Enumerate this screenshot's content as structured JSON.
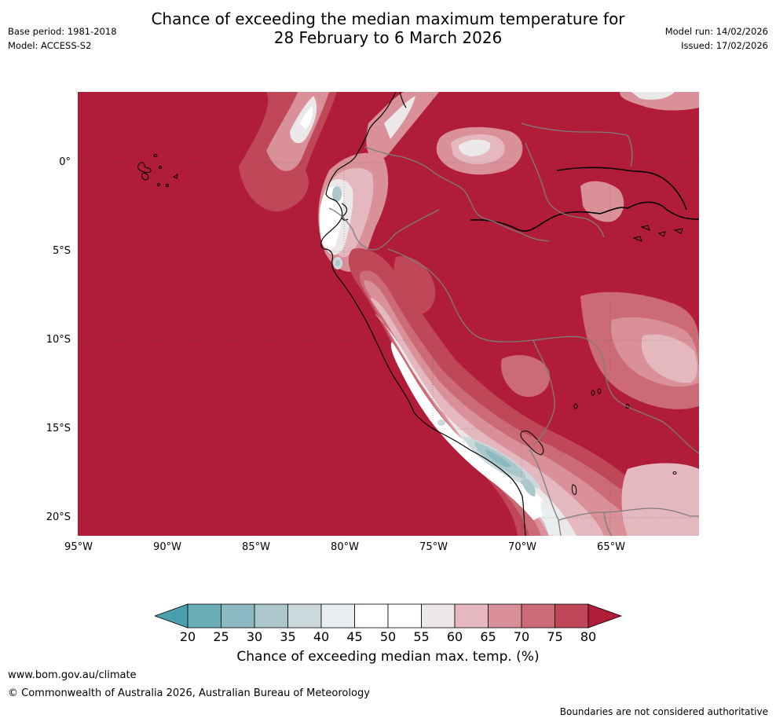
{
  "header": {
    "title_line1": "Chance of exceeding the median maximum temperature for",
    "title_line2": "28 February to 6 March 2026",
    "base_period": "Base period: 1981-2018",
    "model": "Model: ACCESS-S2",
    "model_run": "Model run: 14/02/2026",
    "issued": "Issued: 17/02/2026"
  },
  "map": {
    "lat_labels": [
      "0°",
      "5°S",
      "10°S",
      "15°S",
      "20°S"
    ],
    "lon_labels": [
      "95°W",
      "90°W",
      "85°W",
      "80°W",
      "75°W",
      "70°W",
      "65°W"
    ],
    "region": "Western South America",
    "colors": {
      "above_80": "#b11d38",
      "c75_80": "#bf4757",
      "c70_75": "#cc6a76",
      "c65_70": "#d99099",
      "c60_65": "#e4b8be",
      "c55_60": "#ece8e9",
      "c45_55": "#ffffff",
      "c40_45": "#e9eef0",
      "c35_40": "#ccd9dc",
      "c30_35": "#abc7cc",
      "c25_30": "#8db9c2",
      "c20_25": "#6aadb8",
      "below_20": "#4aa1ae"
    }
  },
  "legend": {
    "ticks": [
      "20",
      "25",
      "30",
      "35",
      "40",
      "45",
      "50",
      "55",
      "60",
      "65",
      "70",
      "75",
      "80"
    ],
    "label": "Chance of exceeding median max. temp. (%)",
    "colors": [
      "#4aa1ae",
      "#6aadb8",
      "#8db9c2",
      "#abc7cc",
      "#ccd9dc",
      "#e9eef0",
      "#ffffff",
      "#ffffff",
      "#ece8e9",
      "#e4b8be",
      "#d99099",
      "#cc6a76",
      "#bf4757",
      "#b11d38"
    ]
  },
  "footer": {
    "url": "www.bom.gov.au/climate",
    "copyright": "© Commonwealth of Australia 2026, Australian Bureau of Meteorology",
    "note": "Boundaries are not considered authoritative"
  }
}
